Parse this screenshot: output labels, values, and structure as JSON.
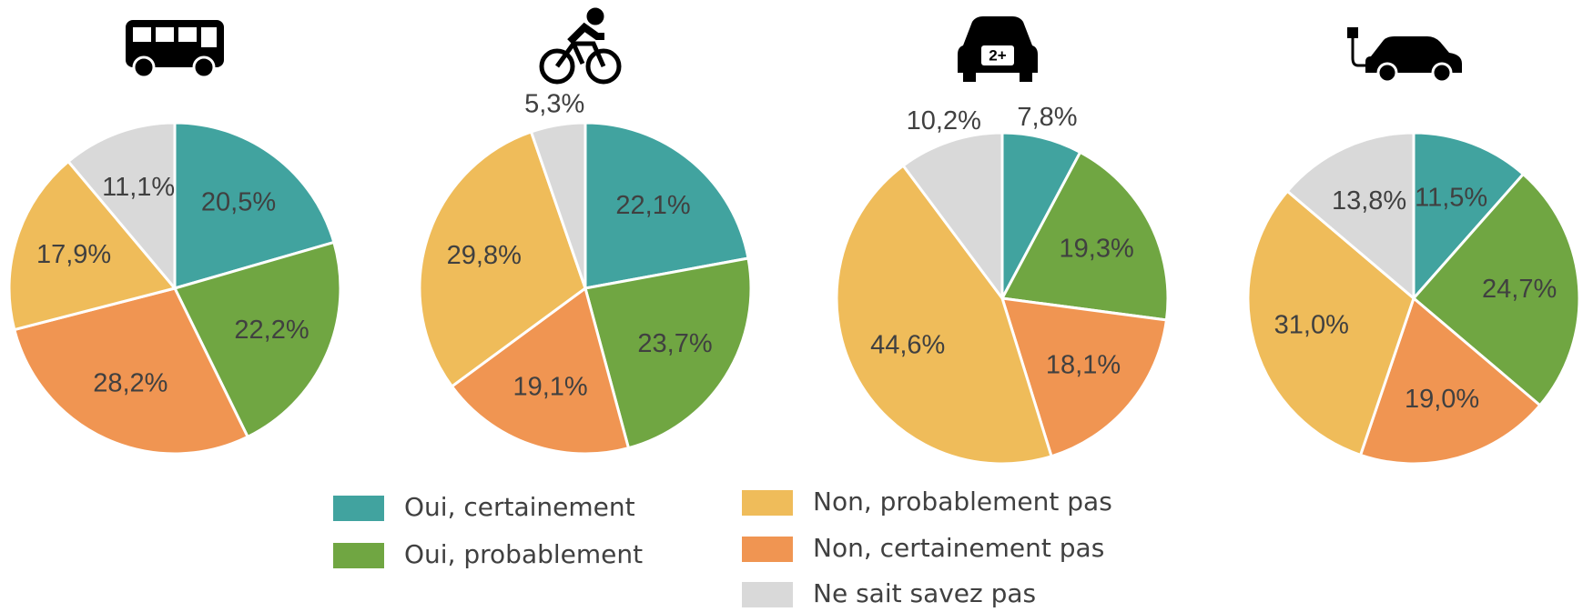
{
  "chart_data": {
    "type": "pie",
    "categories": [
      "Oui, certainement",
      "Oui, probablement",
      "Non, probablement pas",
      "Non, certainement pas",
      "Ne sait savez pas"
    ],
    "colors": [
      "#41a39f",
      "#70a642",
      "#efbc5a",
      "#f09552",
      "#d9d9d9"
    ],
    "series": [
      {
        "values": [
          20.5,
          22.2,
          17.9,
          28.2,
          11.1
        ],
        "value_labels": [
          "20,5%",
          "22,2%",
          "17,9%",
          "28,2%",
          "11,1%"
        ]
      },
      {
        "values": [
          22.1,
          23.7,
          29.8,
          19.1,
          5.3
        ],
        "value_labels": [
          "22,1%",
          "23,7%",
          "29,8%",
          "19,1%",
          "5,3%"
        ]
      },
      {
        "values": [
          7.8,
          19.3,
          44.6,
          18.1,
          10.2
        ],
        "value_labels": [
          "7,8%",
          "19,3%",
          "44,6%",
          "18,1%",
          "10,2%"
        ]
      },
      {
        "values": [
          11.5,
          24.7,
          31.0,
          19.0,
          13.8
        ],
        "value_labels": [
          "11,5%",
          "24,7%",
          "31,0%",
          "19,0%",
          "13,8%"
        ]
      }
    ]
  }
}
